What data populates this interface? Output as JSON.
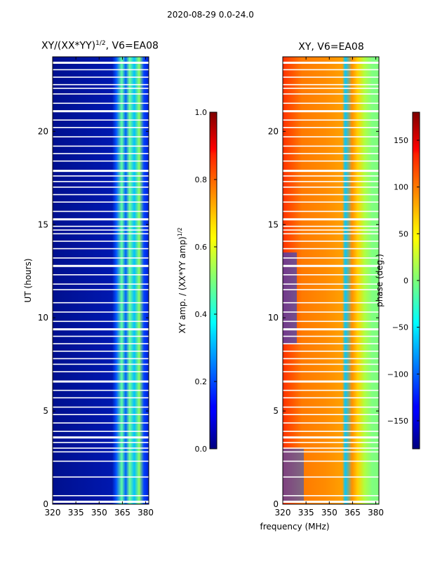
{
  "suptitle": "2020-08-29 0.0-24.0",
  "chart_data": [
    {
      "type": "heatmap",
      "title_main": "XY/(XX*YY)",
      "title_exp": "1/2",
      "title_tail": ", V6=EA08",
      "xlabel": "",
      "ylabel": "UT (hours)",
      "xlim": [
        320,
        382
      ],
      "ylim": [
        0,
        24
      ],
      "xticks": [
        "320",
        "335",
        "350",
        "365",
        "380"
      ],
      "xtick_values": [
        320,
        335,
        350,
        365,
        380
      ],
      "yticks": [
        "0",
        "5",
        "10",
        "15",
        "20"
      ],
      "ytick_values": [
        0,
        5,
        10,
        15,
        20
      ],
      "colorbar": {
        "label_main": "XY amp. / (XX*YY amp)",
        "label_exp": "1/2",
        "range": [
          0.0,
          1.0
        ],
        "ticks": [
          "0.0",
          "0.2",
          "0.4",
          "0.6",
          "0.8",
          "1.0"
        ],
        "tick_values": [
          0.0,
          0.2,
          0.4,
          0.6,
          0.8,
          1.0
        ]
      },
      "description_bands": [
        {
          "freq_range": [
            320,
            361
          ],
          "level": 0.05
        },
        {
          "freq_range": [
            361,
            382
          ],
          "level": 0.45
        }
      ]
    },
    {
      "type": "heatmap",
      "title": "XY, V6=EA08",
      "xlabel": "frequency (MHz)",
      "ylabel": "",
      "xlim": [
        320,
        382
      ],
      "ylim": [
        0,
        24
      ],
      "xticks": [
        "320",
        "335",
        "350",
        "365",
        "380"
      ],
      "xtick_values": [
        320,
        335,
        350,
        365,
        380
      ],
      "yticks": [
        "0",
        "5",
        "10",
        "15",
        "20"
      ],
      "ytick_values": [
        0,
        5,
        10,
        15,
        20
      ],
      "colorbar": {
        "label": "phase (deg.)",
        "range": [
          -180,
          180
        ],
        "ticks": [
          "−150",
          "−100",
          "−50",
          "0",
          "50",
          "100",
          "150"
        ],
        "tick_values": [
          -150,
          -100,
          -50,
          0,
          50,
          100,
          150
        ]
      }
    }
  ],
  "flag_hours": [
    0.15,
    0.45,
    1.45,
    2.3,
    2.8,
    3.0,
    3.3,
    3.6,
    3.9,
    4.35,
    4.8,
    5.2,
    5.7,
    6.1,
    6.6,
    7.1,
    7.5,
    7.8,
    8.2,
    8.6,
    9.0,
    9.4,
    9.8,
    10.3,
    10.8,
    11.5,
    11.8,
    12.3,
    12.8,
    13.2,
    13.7,
    14.1,
    14.5,
    14.7,
    14.9,
    15.3,
    15.7,
    16.2,
    16.6,
    17.0,
    17.3,
    17.6,
    17.9,
    18.4,
    18.8,
    19.2,
    19.7,
    20.2,
    20.6,
    21.1,
    21.5,
    22.0,
    22.3,
    22.5,
    22.9,
    23.3,
    23.7
  ]
}
